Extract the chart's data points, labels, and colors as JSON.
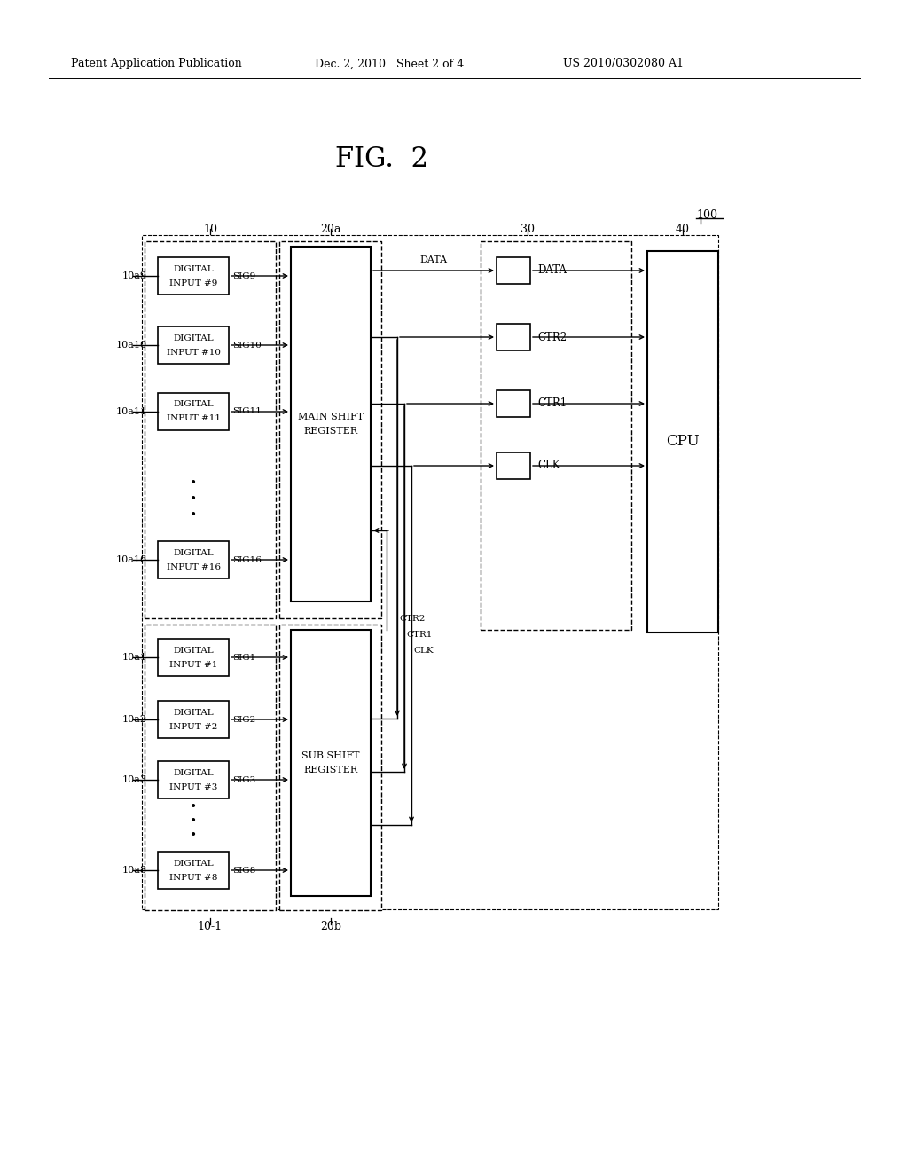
{
  "bg_color": "#ffffff",
  "fig_title": "FIG.  2",
  "header_left": "Patent Application Publication",
  "header_mid": "Dec. 2, 2010   Sheet 2 of 4",
  "header_right": "US 2010/0302080 A1",
  "label_100": "100",
  "label_10": "10",
  "label_20a": "20a",
  "label_30": "30",
  "label_40": "40",
  "label_10_1": "10-1",
  "label_20b": "20b",
  "digital_inputs_main": [
    {
      "label": "10a9",
      "sig": "SIG9",
      "line1": "DIGITAL",
      "line2": "INPUT #9"
    },
    {
      "label": "10a10",
      "sig": "SIG10",
      "line1": "DIGITAL",
      "line2": "INPUT #10"
    },
    {
      "label": "10a11",
      "sig": "SIG11",
      "line1": "DIGITAL",
      "line2": "INPUT #11"
    },
    {
      "label": "10a16",
      "sig": "SIG16",
      "line1": "DIGITAL",
      "line2": "INPUT #16"
    }
  ],
  "digital_inputs_sub": [
    {
      "label": "10a1",
      "sig": "SIG1",
      "line1": "DIGITAL",
      "line2": "INPUT #1"
    },
    {
      "label": "10a2",
      "sig": "SIG2",
      "line1": "DIGITAL",
      "line2": "INPUT #2"
    },
    {
      "label": "10a3",
      "sig": "SIG3",
      "line1": "DIGITAL",
      "line2": "INPUT #3"
    },
    {
      "label": "10a8",
      "sig": "SIG8",
      "line1": "DIGITAL",
      "line2": "INPUT #8"
    }
  ],
  "main_shift_label": [
    "MAIN SHIFT",
    "REGISTER"
  ],
  "sub_shift_label": [
    "SUB SHIFT",
    "REGISTER"
  ],
  "cpu_text": "CPU",
  "iface_labels": [
    "DATA",
    "CTR2",
    "CTR1",
    "CLK"
  ],
  "mid_labels": [
    "CTR2",
    "CTR1",
    "CLK"
  ],
  "data_label": "DATA"
}
